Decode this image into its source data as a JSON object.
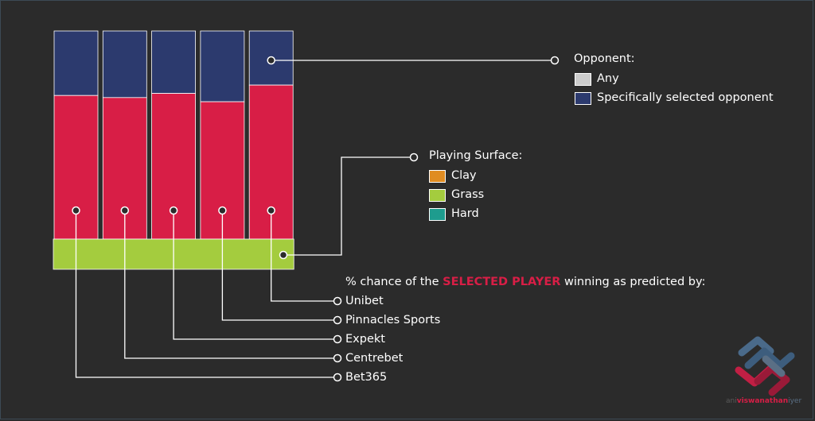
{
  "chart_data": {
    "type": "bar",
    "categories": [
      "Bet365",
      "Centrebet",
      "Expekt",
      "Pinnacles Sports",
      "Unibet"
    ],
    "series": [
      {
        "name": "Specifically selected opponent",
        "color": "#2c3a6e",
        "values": [
          31,
          32,
          30,
          34,
          26
        ]
      },
      {
        "name": "SELECTED PLAYER",
        "color": "#d81e46",
        "values": [
          69,
          68,
          70,
          66,
          74
        ]
      }
    ],
    "ylim": [
      0,
      100
    ],
    "surface": "Grass",
    "colors": {
      "background": "#2b2b2b",
      "grass": "#a4cc3e",
      "opponent": "#2c3a6e",
      "player": "#d81e46",
      "line": "#ffffff"
    }
  },
  "legend": {
    "opponent": {
      "title": "Opponent:",
      "items": [
        {
          "label": "Any",
          "color": "#cccccc"
        },
        {
          "label": "Specifically selected opponent",
          "color": "#2c3a6e"
        }
      ]
    },
    "surface": {
      "title": "Playing Surface:",
      "items": [
        {
          "label": "Clay",
          "color": "#e08c22"
        },
        {
          "label": "Grass",
          "color": "#a4cc3e"
        },
        {
          "label": "Hard",
          "color": "#1e9c8e"
        }
      ]
    }
  },
  "caption": {
    "prefix": "% chance of the ",
    "highlight": "SELECTED PLAYER",
    "suffix": " winning as predicted by:"
  },
  "brand": {
    "part1": "ani",
    "part2": "viswanathan",
    "part3": "iyer"
  }
}
